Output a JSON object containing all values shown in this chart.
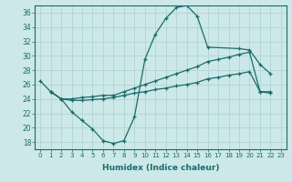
{
  "xlabel": "Humidex (Indice chaleur)",
  "background_color": "#cce8e8",
  "grid_color": "#b0d4d4",
  "line_color": "#1a6b6b",
  "xlim": [
    -0.5,
    23.5
  ],
  "ylim": [
    17,
    37
  ],
  "xticks": [
    0,
    1,
    2,
    3,
    4,
    5,
    6,
    7,
    8,
    9,
    10,
    11,
    12,
    13,
    14,
    15,
    16,
    17,
    18,
    19,
    20,
    21,
    22,
    23
  ],
  "yticks": [
    18,
    20,
    22,
    24,
    26,
    28,
    30,
    32,
    34,
    36
  ],
  "series1_x": [
    0,
    1,
    2,
    3,
    4,
    5,
    6,
    7,
    8,
    9,
    10,
    11,
    12,
    13,
    14,
    15,
    16,
    19,
    20,
    21,
    22
  ],
  "series1_y": [
    26.5,
    25.0,
    24.0,
    22.2,
    21.0,
    19.8,
    18.2,
    17.8,
    18.2,
    21.5,
    29.5,
    33.0,
    35.2,
    36.7,
    37.0,
    35.5,
    31.2,
    31.0,
    30.8,
    28.8,
    27.5
  ],
  "series2_x": [
    1,
    2,
    3,
    4,
    5,
    6,
    7,
    8,
    9,
    10,
    11,
    12,
    13,
    14,
    15,
    16,
    17,
    18,
    19,
    20,
    21,
    22
  ],
  "series2_y": [
    25.0,
    24.0,
    24.0,
    24.2,
    24.3,
    24.5,
    24.5,
    25.0,
    25.5,
    26.0,
    26.5,
    27.0,
    27.5,
    28.0,
    28.5,
    29.2,
    29.5,
    29.8,
    30.2,
    30.5,
    25.0,
    25.0
  ],
  "series3_x": [
    1,
    2,
    3,
    4,
    5,
    6,
    7,
    8,
    9,
    10,
    11,
    12,
    13,
    14,
    15,
    16,
    17,
    18,
    19,
    20,
    21,
    22
  ],
  "series3_y": [
    25.0,
    24.0,
    23.8,
    23.8,
    23.9,
    24.0,
    24.2,
    24.5,
    24.8,
    25.0,
    25.3,
    25.5,
    25.8,
    26.0,
    26.3,
    26.8,
    27.0,
    27.3,
    27.5,
    27.8,
    25.0,
    24.8
  ]
}
